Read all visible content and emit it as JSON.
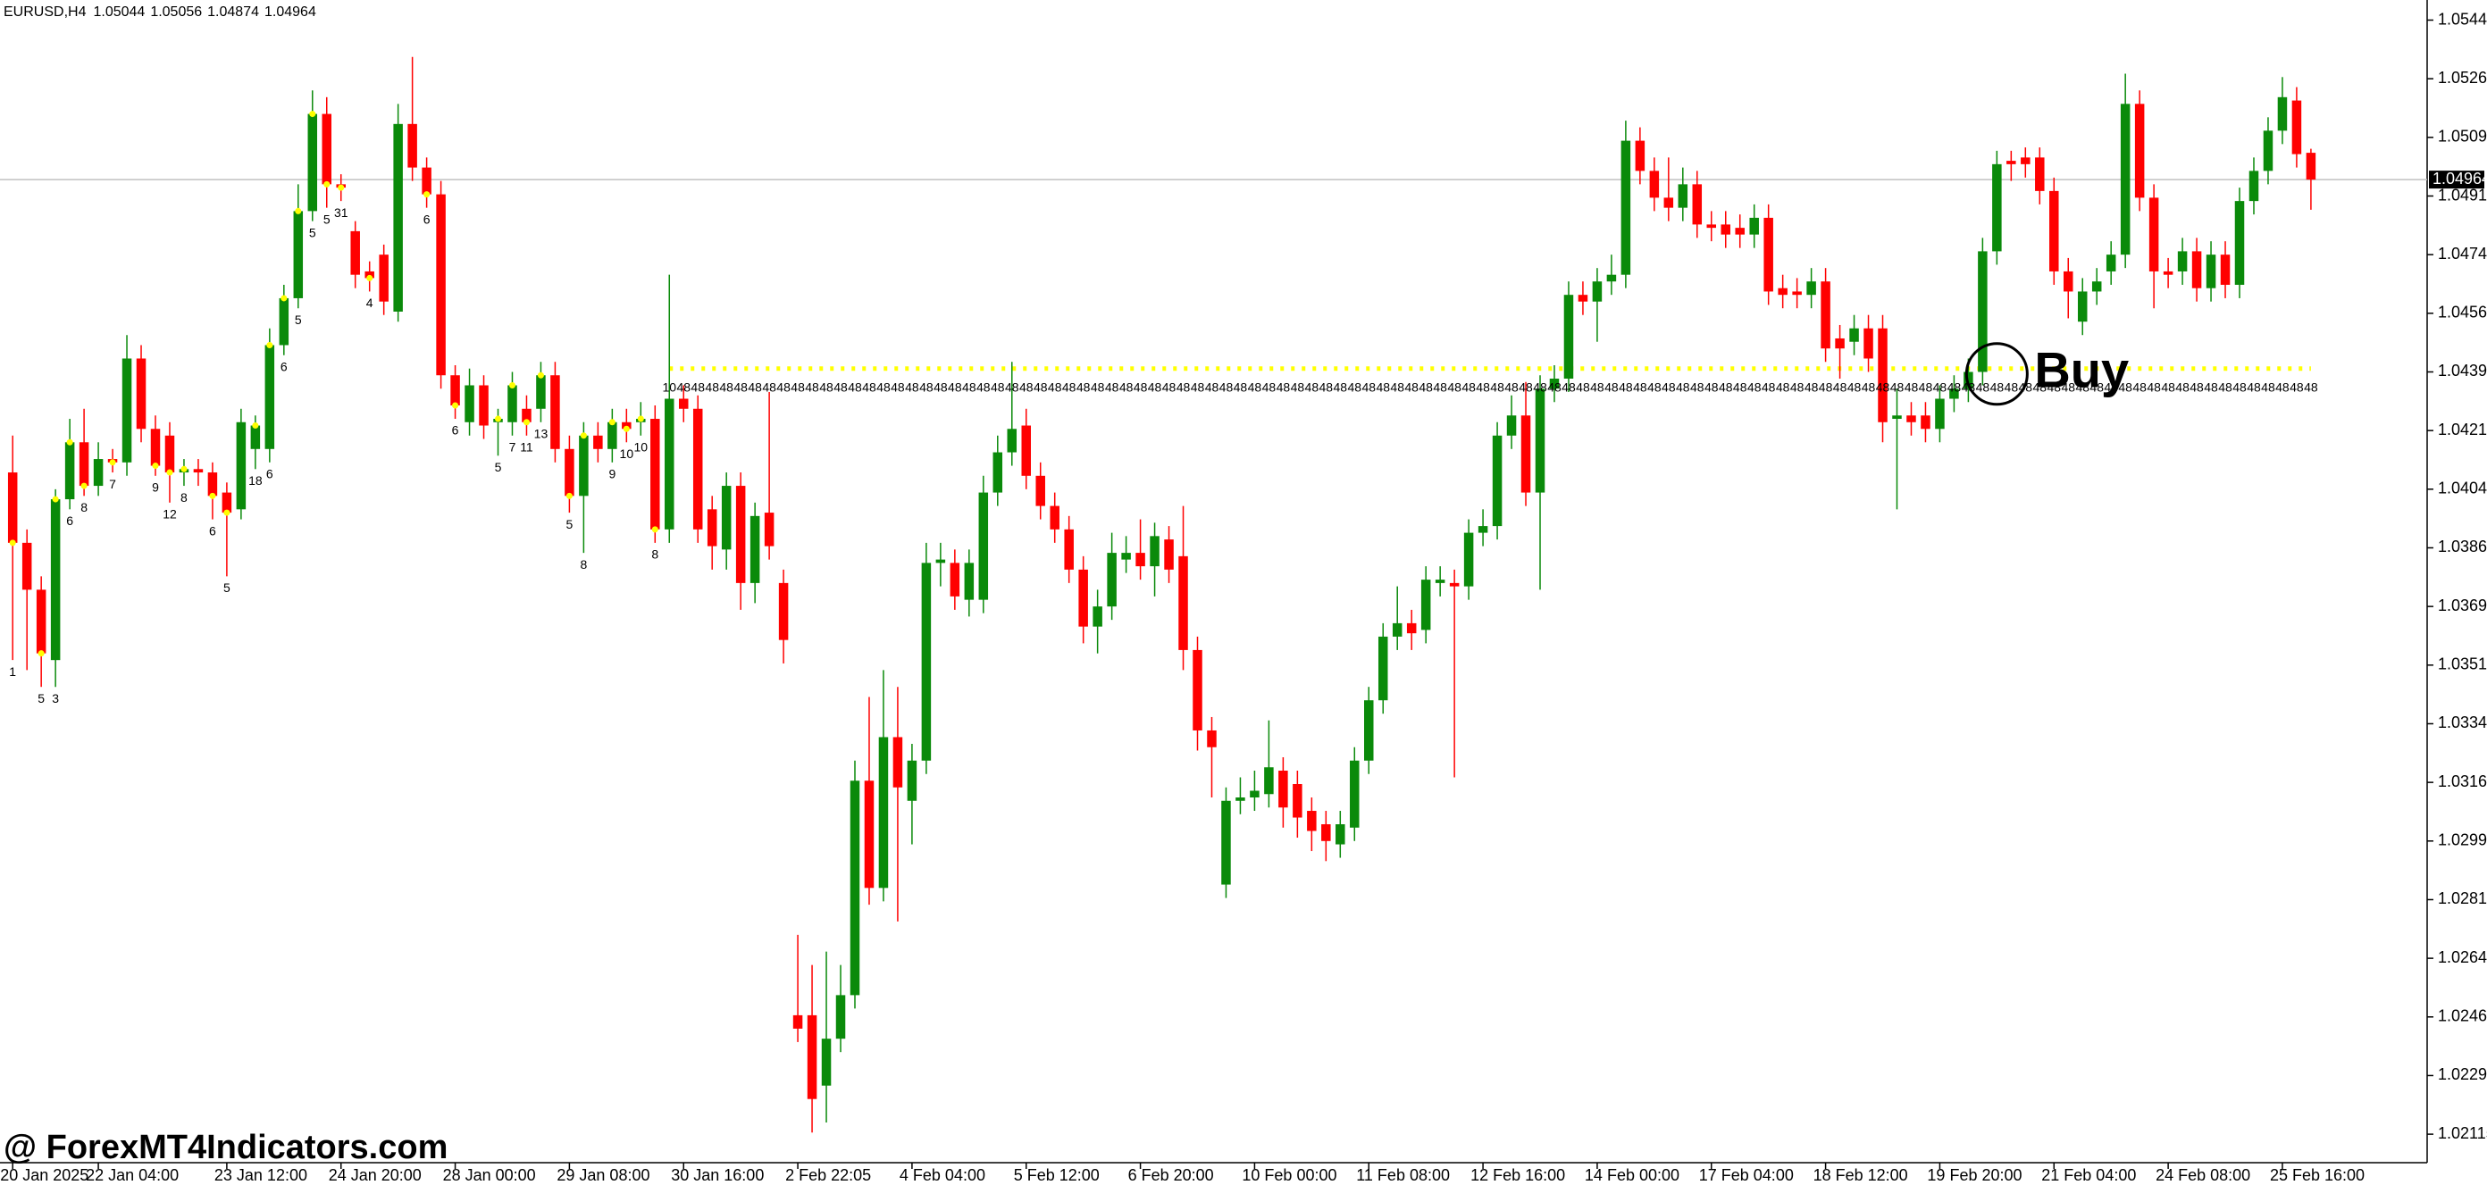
{
  "chart_data": {
    "type": "candlestick",
    "symbol": "EURUSD,H4",
    "watermark": "@ ForexMT4Indicators.com",
    "annotation": "Buy",
    "up_color": "#0a8a0a",
    "down_color": "#ff0000",
    "ylim": [
      1.0203,
      1.055
    ],
    "yticks": [
      {
        "value": 1.0544,
        "label": "1.05440"
      },
      1.05265,
      1.0509,
      1.04915,
      1.0474,
      1.04565,
      {
        "value": 1.0439,
        "label": "1.04390"
      },
      1.04215,
      {
        "value": 1.0404,
        "label": "1.04040"
      },
      1.03865,
      {
        "value": 1.0369,
        "label": "1.03690"
      },
      1.03515,
      {
        "value": 1.0334,
        "label": "1.03340"
      },
      1.03165,
      {
        "value": 1.0299,
        "label": "1.02990"
      },
      1.02815,
      {
        "value": 1.0264,
        "label": "1.02640"
      },
      1.02465,
      {
        "value": 1.0229,
        "label": "1.02290"
      },
      1.02115
    ],
    "current_price": 1.04964,
    "level": {
      "value": 1.044,
      "color": "#ffff00"
    },
    "categories": [
      "20 Jan 2025",
      null,
      null,
      null,
      null,
      null,
      "22 Jan 04:00",
      null,
      null,
      null,
      null,
      null,
      null,
      null,
      null,
      "23 Jan 12:00",
      null,
      null,
      null,
      null,
      null,
      null,
      null,
      "24 Jan 20:00",
      null,
      null,
      null,
      null,
      null,
      null,
      null,
      "28 Jan 00:00",
      null,
      null,
      null,
      null,
      null,
      null,
      null,
      "29 Jan 08:00",
      null,
      null,
      null,
      null,
      null,
      null,
      null,
      "30 Jan 16:00",
      null,
      null,
      null,
      null,
      null,
      null,
      null,
      "2 Feb 22:05",
      null,
      null,
      null,
      null,
      null,
      null,
      null,
      "4 Feb 04:00",
      null,
      null,
      null,
      null,
      null,
      null,
      null,
      "5 Feb 12:00",
      null,
      null,
      null,
      null,
      null,
      null,
      null,
      "6 Feb 20:00",
      null,
      null,
      null,
      null,
      null,
      null,
      null,
      "10 Feb 00:00",
      null,
      null,
      null,
      null,
      null,
      null,
      null,
      "11 Feb 08:00",
      null,
      null,
      null,
      null,
      null,
      null,
      null,
      "12 Feb 16:00",
      null,
      null,
      null,
      null,
      null,
      null,
      null,
      "14 Feb 00:00",
      null,
      null,
      null,
      null,
      null,
      null,
      null,
      "17 Feb 04:00",
      null,
      null,
      null,
      null,
      null,
      null,
      null,
      "18 Feb 12:00",
      null,
      null,
      null,
      null,
      null,
      null,
      null,
      "19 Feb 20:00",
      null,
      null,
      null,
      null,
      null,
      null,
      null,
      "21 Feb 04:00",
      null,
      null,
      null,
      null,
      null,
      null,
      null,
      "24 Feb 08:00",
      null,
      null,
      null,
      null,
      null,
      null,
      null,
      "25 Feb 16:00",
      null,
      null
    ],
    "open": [
      1.0409,
      1.0388,
      1.0374,
      1.0353,
      1.0401,
      1.0418,
      1.0405,
      1.0413,
      1.0412,
      1.0443,
      1.0422,
      1.042,
      1.0409,
      1.041,
      1.0409,
      1.0403,
      1.0398,
      1.0416,
      1.0416,
      1.0447,
      1.0461,
      1.0487,
      1.0516,
      1.0495,
      1.0481,
      1.0469,
      1.0474,
      1.0457,
      1.0513,
      1.05,
      1.0492,
      1.0438,
      1.0424,
      1.0435,
      1.0424,
      1.0424,
      1.0428,
      1.0428,
      1.0438,
      1.0416,
      1.0402,
      1.042,
      1.0416,
      1.0424,
      1.0424,
      1.0425,
      1.0392,
      1.0431,
      1.0428,
      1.0398,
      1.0386,
      1.0405,
      1.0376,
      1.0397,
      1.0376,
      1.0247,
      1.0247,
      1.0226,
      1.024,
      1.0253,
      1.0317,
      1.0285,
      1.033,
      1.0311,
      1.0323,
      1.0382,
      1.0382,
      1.0371,
      1.0371,
      1.0403,
      1.0415,
      1.0423,
      1.0408,
      1.0399,
      1.0392,
      1.038,
      1.0363,
      1.0369,
      1.0383,
      1.0385,
      1.0381,
      1.0389,
      1.0384,
      1.0356,
      1.0332,
      1.0286,
      1.0311,
      1.0312,
      1.0313,
      1.032,
      1.0316,
      1.0308,
      1.0304,
      1.0298,
      1.0303,
      1.0323,
      1.0341,
      1.036,
      1.0364,
      1.0362,
      1.0376,
      1.0376,
      1.0375,
      1.0391,
      1.0393,
      1.042,
      1.0426,
      1.0403,
      1.0434,
      1.0437,
      1.0462,
      1.046,
      1.0466,
      1.0468,
      1.0508,
      1.0499,
      1.0491,
      1.0488,
      1.0495,
      1.0483,
      1.0483,
      1.0482,
      1.048,
      1.0485,
      1.0464,
      1.0463,
      1.0462,
      1.0466,
      1.0449,
      1.0448,
      1.0452,
      1.0452,
      1.0425,
      1.0426,
      1.0426,
      1.0422,
      1.0431,
      1.0434,
      1.0439,
      1.0475,
      1.0502,
      1.0503,
      1.0503,
      1.0493,
      1.0469,
      1.0454,
      1.0463,
      1.0469,
      1.0474,
      1.0519,
      1.0491,
      1.0469,
      1.0469,
      1.0475,
      1.0464,
      1.0474,
      1.0465,
      1.049,
      1.0499,
      1.0511,
      1.052,
      1.05044
    ],
    "high": [
      1.042,
      1.0392,
      1.0378,
      1.0404,
      1.0425,
      1.0428,
      1.0418,
      1.0416,
      1.045,
      1.0447,
      1.0426,
      1.0424,
      1.0413,
      1.0413,
      1.0412,
      1.0406,
      1.0428,
      1.0426,
      1.0452,
      1.0465,
      1.0495,
      1.0523,
      1.0521,
      1.0498,
      1.0484,
      1.0472,
      1.0477,
      1.0519,
      1.0533,
      1.0503,
      1.0496,
      1.0441,
      1.044,
      1.0438,
      1.0428,
      1.0439,
      1.0432,
      1.0442,
      1.0442,
      1.042,
      1.0424,
      1.0424,
      1.0428,
      1.0428,
      1.043,
      1.0429,
      1.0468,
      1.0435,
      1.0432,
      1.0402,
      1.0409,
      1.0409,
      1.04,
      1.0433,
      1.038,
      1.0271,
      1.0262,
      1.0266,
      1.0262,
      1.0323,
      1.0342,
      1.035,
      1.0345,
      1.0328,
      1.0388,
      1.0388,
      1.0386,
      1.0386,
      1.0408,
      1.042,
      1.0442,
      1.0428,
      1.0412,
      1.0403,
      1.0396,
      1.0384,
      1.0374,
      1.0391,
      1.039,
      1.0395,
      1.0394,
      1.0393,
      1.0399,
      1.036,
      1.0336,
      1.0315,
      1.0318,
      1.032,
      1.0335,
      1.0324,
      1.032,
      1.0312,
      1.0308,
      1.0308,
      1.0327,
      1.0345,
      1.0364,
      1.0375,
      1.0368,
      1.0381,
      1.0381,
      1.038,
      1.0395,
      1.0398,
      1.0424,
      1.0432,
      1.0436,
      1.0438,
      1.0441,
      1.0466,
      1.0466,
      1.047,
      1.0474,
      1.0514,
      1.0512,
      1.0503,
      1.0503,
      1.05,
      1.0499,
      1.0487,
      1.0487,
      1.0486,
      1.0489,
      1.0489,
      1.0468,
      1.0467,
      1.047,
      1.047,
      1.0453,
      1.0456,
      1.0456,
      1.0456,
      1.0434,
      1.043,
      1.043,
      1.0435,
      1.0438,
      1.0443,
      1.0479,
      1.0505,
      1.0505,
      1.0506,
      1.0506,
      1.0497,
      1.0473,
      1.0467,
      1.047,
      1.0478,
      1.0528,
      1.0523,
      1.0495,
      1.0473,
      1.0479,
      1.0479,
      1.0478,
      1.0478,
      1.0494,
      1.0503,
      1.0515,
      1.0527,
      1.0524,
      1.05056
    ],
    "low": [
      1.0353,
      1.035,
      1.0345,
      1.0345,
      1.0398,
      1.0402,
      1.0402,
      1.0409,
      1.0408,
      1.0418,
      1.0408,
      1.04,
      1.0405,
      1.0405,
      1.0395,
      1.0378,
      1.0395,
      1.041,
      1.0412,
      1.0444,
      1.0458,
      1.0484,
      1.0488,
      1.049,
      1.0464,
      1.0463,
      1.0456,
      1.0454,
      1.0496,
      1.0488,
      1.0434,
      1.0425,
      1.042,
      1.0419,
      1.0414,
      1.042,
      1.042,
      1.0424,
      1.0412,
      1.0397,
      1.0385,
      1.0412,
      1.0412,
      1.0418,
      1.042,
      1.0388,
      1.0388,
      1.0424,
      1.0388,
      1.038,
      1.038,
      1.0368,
      1.037,
      1.0383,
      1.0352,
      1.0239,
      1.0212,
      1.0215,
      1.0236,
      1.0249,
      1.028,
      1.0281,
      1.0275,
      1.0298,
      1.0319,
      1.0375,
      1.0368,
      1.0366,
      1.0367,
      1.0399,
      1.0411,
      1.0404,
      1.0395,
      1.0388,
      1.0376,
      1.0358,
      1.0355,
      1.0365,
      1.0379,
      1.0377,
      1.0372,
      1.0376,
      1.035,
      1.0326,
      1.0312,
      1.0282,
      1.0307,
      1.0308,
      1.0309,
      1.0303,
      1.03,
      1.0296,
      1.0293,
      1.0294,
      1.0299,
      1.0319,
      1.0337,
      1.0356,
      1.0356,
      1.0358,
      1.0372,
      1.0318,
      1.0371,
      1.0387,
      1.0389,
      1.0416,
      1.0399,
      1.0374,
      1.043,
      1.0433,
      1.0456,
      1.0448,
      1.0462,
      1.0464,
      1.0495,
      1.0487,
      1.0484,
      1.0484,
      1.0479,
      1.0478,
      1.0476,
      1.0476,
      1.0476,
      1.0459,
      1.0458,
      1.0458,
      1.0458,
      1.0442,
      1.0437,
      1.0444,
      1.0439,
      1.0418,
      1.0398,
      1.042,
      1.0418,
      1.0418,
      1.0427,
      1.043,
      1.0435,
      1.0471,
      1.0496,
      1.0497,
      1.0489,
      1.0465,
      1.0455,
      1.045,
      1.0459,
      1.0465,
      1.047,
      1.0487,
      1.0458,
      1.0464,
      1.0465,
      1.046,
      1.046,
      1.0461,
      1.0461,
      1.0486,
      1.0495,
      1.0507,
      1.05,
      1.04874
    ],
    "close": [
      1.0388,
      1.0374,
      1.0355,
      1.0401,
      1.0418,
      1.0405,
      1.0413,
      1.0412,
      1.0443,
      1.0422,
      1.0411,
      1.0409,
      1.041,
      1.0409,
      1.0402,
      1.0397,
      1.0424,
      1.0423,
      1.0447,
      1.0461,
      1.0487,
      1.0516,
      1.0495,
      1.0494,
      1.0468,
      1.0467,
      1.046,
      1.0513,
      1.05,
      1.0492,
      1.0438,
      1.0429,
      1.0435,
      1.0423,
      1.0425,
      1.0435,
      1.0424,
      1.0438,
      1.0416,
      1.0402,
      1.042,
      1.0416,
      1.0424,
      1.0422,
      1.0425,
      1.0392,
      1.0431,
      1.0428,
      1.0392,
      1.0387,
      1.0405,
      1.0376,
      1.0396,
      1.0387,
      1.0359,
      1.0243,
      1.0222,
      1.024,
      1.0253,
      1.0317,
      1.0285,
      1.033,
      1.0315,
      1.0323,
      1.0382,
      1.0383,
      1.0372,
      1.0382,
      1.0403,
      1.0415,
      1.0422,
      1.0408,
      1.0399,
      1.0392,
      1.038,
      1.0363,
      1.0369,
      1.0385,
      1.0385,
      1.0381,
      1.039,
      1.038,
      1.0356,
      1.0332,
      1.0327,
      1.0311,
      1.0312,
      1.0314,
      1.0321,
      1.0309,
      1.0306,
      1.0302,
      1.0299,
      1.0304,
      1.0323,
      1.0341,
      1.036,
      1.0364,
      1.0361,
      1.0377,
      1.0377,
      1.0375,
      1.0391,
      1.0393,
      1.042,
      1.0426,
      1.0403,
      1.0434,
      1.0437,
      1.0462,
      1.046,
      1.0466,
      1.0468,
      1.0508,
      1.0499,
      1.0491,
      1.0488,
      1.0495,
      1.0483,
      1.0482,
      1.048,
      1.048,
      1.0485,
      1.0463,
      1.0462,
      1.0462,
      1.0466,
      1.0446,
      1.0446,
      1.0452,
      1.0443,
      1.0424,
      1.0426,
      1.0424,
      1.0422,
      1.0431,
      1.0434,
      1.0439,
      1.0475,
      1.0501,
      1.0501,
      1.0501,
      1.0493,
      1.0469,
      1.0463,
      1.0463,
      1.0466,
      1.0474,
      1.0519,
      1.0491,
      1.0469,
      1.0468,
      1.0475,
      1.0464,
      1.0474,
      1.0465,
      1.049,
      1.0499,
      1.0511,
      1.0521,
      1.0504,
      1.04964
    ],
    "signal_counts": [
      1,
      null,
      5,
      3,
      6,
      8,
      null,
      7,
      null,
      null,
      9,
      12,
      8,
      null,
      6,
      5,
      null,
      18,
      6,
      6,
      5,
      5,
      5,
      31,
      null,
      4,
      null,
      null,
      null,
      6,
      null,
      6,
      null,
      null,
      5,
      7,
      11,
      13,
      null,
      5,
      8,
      null,
      9,
      10,
      10,
      8,
      10,
      48,
      48,
      48,
      48,
      48,
      48,
      48,
      48,
      48,
      48,
      48,
      48,
      48,
      48,
      48,
      48,
      48,
      48,
      48,
      48,
      48,
      48,
      48,
      48,
      48,
      48,
      48,
      48,
      48,
      48,
      48,
      48,
      48,
      48,
      48,
      48,
      48,
      48,
      48,
      48,
      48,
      48,
      48,
      48,
      48,
      48,
      48,
      48,
      48,
      48,
      48,
      48,
      48,
      48,
      48,
      48,
      48,
      48,
      48,
      48,
      48,
      48,
      48,
      48,
      48,
      48,
      48,
      48,
      48,
      48,
      48,
      48,
      48,
      48,
      48,
      48,
      48,
      48,
      48,
      48,
      48,
      48,
      48,
      48,
      48,
      48,
      48,
      48,
      48,
      48,
      48,
      48,
      48,
      48,
      48,
      48,
      48,
      48,
      48,
      48,
      48,
      48,
      48,
      48,
      48,
      48,
      48,
      48,
      48,
      48,
      48,
      48,
      48,
      48,
      48
    ]
  }
}
